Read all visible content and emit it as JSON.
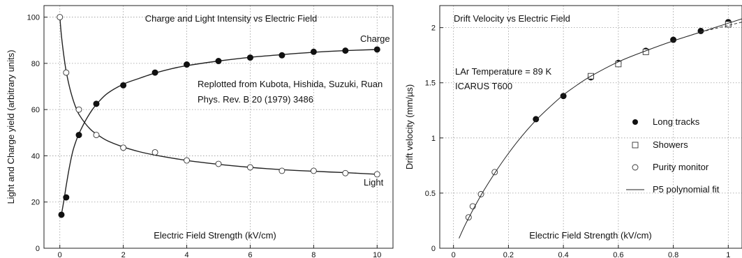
{
  "chart_data": [
    {
      "type": "scatter",
      "title": "Charge and Light Intensity vs Electric Field",
      "xlabel": "Electric Field Strength (kV/cm)",
      "ylabel": "Light and Charge yield (arbitrary units)",
      "xlim": [
        -0.5,
        10.5
      ],
      "ylim": [
        0,
        105
      ],
      "xticks": [
        0,
        2,
        4,
        6,
        8,
        10
      ],
      "yticks": [
        0,
        20,
        40,
        60,
        80,
        100
      ],
      "grid": true,
      "annotation_lines": [
        "Replotted from Kubota, Hishida, Suzuki, Ruan",
        "Phys. Rev. B 20 (1979) 3486"
      ],
      "series": [
        {
          "name": "Charge",
          "marker": "filled-circle",
          "x": [
            0.05,
            0.2,
            0.6,
            1.15,
            2,
            3,
            4,
            5,
            6,
            7,
            8,
            9,
            10
          ],
          "y": [
            14.5,
            22,
            49,
            62.5,
            70.5,
            76,
            79.5,
            81,
            82.5,
            83.5,
            85,
            85.5,
            86
          ],
          "fit_x": [
            0.05,
            0.1,
            0.15,
            0.2,
            0.3,
            0.4,
            0.5,
            0.6,
            0.8,
            1.0,
            1.2,
            1.5,
            2,
            2.5,
            3,
            3.5,
            4,
            5,
            6,
            7,
            8,
            9,
            10
          ],
          "fit_y": [
            14.5,
            18.5,
            22.5,
            27,
            35,
            41.5,
            46,
            49.5,
            55,
            59.5,
            63,
            67,
            71,
            73.5,
            75.8,
            77.6,
            79,
            81,
            82.6,
            83.8,
            84.8,
            85.5,
            86
          ]
        },
        {
          "name": "Light",
          "marker": "open-circle",
          "x": [
            0,
            0.2,
            0.6,
            1.15,
            2,
            3,
            4,
            5,
            6,
            7,
            8,
            9,
            10
          ],
          "y": [
            100,
            76,
            60,
            49,
            43.5,
            41.5,
            38,
            36.5,
            35,
            33.5,
            33.5,
            32.5,
            32
          ],
          "fit_x": [
            0,
            0.05,
            0.1,
            0.15,
            0.2,
            0.3,
            0.4,
            0.5,
            0.6,
            0.8,
            1.0,
            1.2,
            1.5,
            2,
            2.5,
            3,
            4,
            5,
            6,
            7,
            8,
            9,
            10
          ],
          "fit_y": [
            100,
            92,
            86,
            81,
            76.5,
            70,
            65,
            61,
            58,
            54,
            51,
            49,
            46.5,
            43.8,
            41.8,
            40.3,
            38,
            36.3,
            35,
            34,
            33.3,
            32.7,
            32
          ]
        }
      ]
    },
    {
      "type": "scatter",
      "title": "Drift Velocity vs Electric Field",
      "xlabel": "Electric Field Strength (kV/cm)",
      "ylabel": "Drift velocity (mm/µs)",
      "xlim": [
        -0.05,
        1.05
      ],
      "ylim": [
        0,
        2.2
      ],
      "xticks": [
        0,
        0.2,
        0.4,
        0.6,
        0.8,
        1
      ],
      "yticks": [
        0,
        0.5,
        1,
        1.5,
        2
      ],
      "grid": true,
      "annotation_lines": [
        "LAr Temperature = 89 K",
        "ICARUS T600"
      ],
      "legend_position": "right",
      "series": [
        {
          "name": "Long tracks",
          "marker": "filled-circle",
          "x": [
            0.3,
            0.4,
            0.5,
            0.6,
            0.7,
            0.8,
            0.9,
            1.0
          ],
          "y": [
            1.17,
            1.38,
            1.55,
            1.68,
            1.79,
            1.89,
            1.97,
            2.05
          ]
        },
        {
          "name": "Showers",
          "marker": "open-square",
          "x": [
            0.5,
            0.6,
            0.7,
            1.0
          ],
          "y": [
            1.56,
            1.67,
            1.78,
            2.03
          ]
        },
        {
          "name": "Purity monitor",
          "marker": "open-circle",
          "x": [
            0.055,
            0.07,
            0.1,
            0.15
          ],
          "y": [
            0.28,
            0.38,
            0.49,
            0.69
          ]
        },
        {
          "name": "P5 polynomial fit",
          "marker": "line",
          "x": [
            0.02,
            0.05,
            0.1,
            0.15,
            0.2,
            0.25,
            0.3,
            0.35,
            0.4,
            0.45,
            0.5,
            0.6,
            0.7,
            0.8,
            0.9,
            1.0,
            1.05
          ],
          "y": [
            0.09,
            0.25,
            0.48,
            0.68,
            0.86,
            1.02,
            1.16,
            1.28,
            1.39,
            1.48,
            1.56,
            1.69,
            1.79,
            1.88,
            1.96,
            2.04,
            2.08
          ]
        }
      ],
      "dashed_fit": {
        "x": [
          0.85,
          0.9,
          0.95,
          1.0,
          1.05
        ],
        "y": [
          1.92,
          1.96,
          1.99,
          2.02,
          2.05
        ]
      }
    }
  ]
}
